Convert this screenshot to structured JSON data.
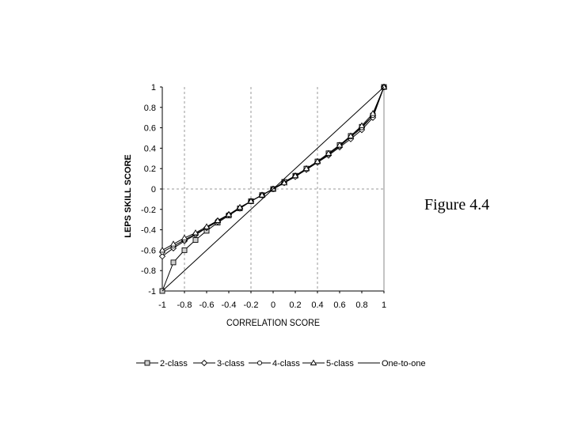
{
  "caption": "Figure 4.4",
  "chart_data": {
    "type": "line",
    "xlabel": "CORRELATION SCORE",
    "ylabel": "LEPS SKILL SCORE",
    "xlim": [
      -1,
      1
    ],
    "ylim": [
      -1,
      1
    ],
    "x_ticks": [
      "-1",
      "-0.8",
      "-0.6",
      "-0.4",
      "-0.2",
      "0",
      "0.2",
      "0.4",
      "0.6",
      "0.8",
      "1"
    ],
    "y_ticks": [
      "1",
      "0.8",
      "0.6",
      "0.4",
      "0.2",
      "0",
      "-0.2",
      "-0.4",
      "-0.6",
      "-0.8",
      "-1"
    ],
    "grid": "dashed vertical lines at x = -0.8, -0.2, 0.4; dashed horizontal line at y = 0",
    "legend_position": "bottom",
    "series": [
      {
        "name": "2-class",
        "marker": "square",
        "x": [
          -1,
          -0.9,
          -0.8,
          -0.7,
          -0.6,
          -0.5,
          -0.4,
          -0.3,
          -0.2,
          -0.1,
          0,
          0.1,
          0.2,
          0.3,
          0.4,
          0.5,
          0.6,
          0.7,
          0.8,
          0.9,
          1
        ],
        "y": [
          -1,
          -0.72,
          -0.6,
          -0.5,
          -0.41,
          -0.33,
          -0.26,
          -0.19,
          -0.12,
          -0.06,
          0,
          0.07,
          0.13,
          0.2,
          0.27,
          0.35,
          0.43,
          0.52,
          0.61,
          0.72,
          1
        ]
      },
      {
        "name": "3-class",
        "marker": "diamond",
        "x": [
          -1,
          -0.9,
          -0.8,
          -0.7,
          -0.6,
          -0.5,
          -0.4,
          -0.3,
          -0.2,
          -0.1,
          0,
          0.1,
          0.2,
          0.3,
          0.4,
          0.5,
          0.6,
          0.7,
          0.8,
          0.9,
          1
        ],
        "y": [
          -0.66,
          -0.58,
          -0.51,
          -0.45,
          -0.38,
          -0.32,
          -0.25,
          -0.19,
          -0.12,
          -0.06,
          0,
          0.06,
          0.12,
          0.19,
          0.26,
          0.33,
          0.41,
          0.49,
          0.58,
          0.7,
          1
        ]
      },
      {
        "name": "4-class",
        "marker": "circle",
        "x": [
          -1,
          -0.9,
          -0.8,
          -0.7,
          -0.6,
          -0.5,
          -0.4,
          -0.3,
          -0.2,
          -0.1,
          0,
          0.1,
          0.2,
          0.3,
          0.4,
          0.5,
          0.6,
          0.7,
          0.8,
          0.9,
          1
        ],
        "y": [
          -0.62,
          -0.56,
          -0.5,
          -0.44,
          -0.38,
          -0.31,
          -0.25,
          -0.19,
          -0.12,
          -0.06,
          0,
          0.06,
          0.13,
          0.19,
          0.26,
          0.34,
          0.42,
          0.51,
          0.6,
          0.72,
          1
        ]
      },
      {
        "name": "5-class",
        "marker": "triangle",
        "x": [
          -1,
          -0.9,
          -0.8,
          -0.7,
          -0.6,
          -0.5,
          -0.4,
          -0.3,
          -0.2,
          -0.1,
          0,
          0.1,
          0.2,
          0.3,
          0.4,
          0.5,
          0.6,
          0.7,
          0.8,
          0.9,
          1
        ],
        "y": [
          -0.6,
          -0.54,
          -0.48,
          -0.43,
          -0.37,
          -0.31,
          -0.25,
          -0.18,
          -0.12,
          -0.06,
          0,
          0.06,
          0.13,
          0.2,
          0.27,
          0.35,
          0.43,
          0.52,
          0.62,
          0.74,
          1
        ]
      },
      {
        "name": "One-to-one",
        "marker": "none",
        "x": [
          -1,
          1
        ],
        "y": [
          -1,
          1
        ]
      }
    ]
  }
}
